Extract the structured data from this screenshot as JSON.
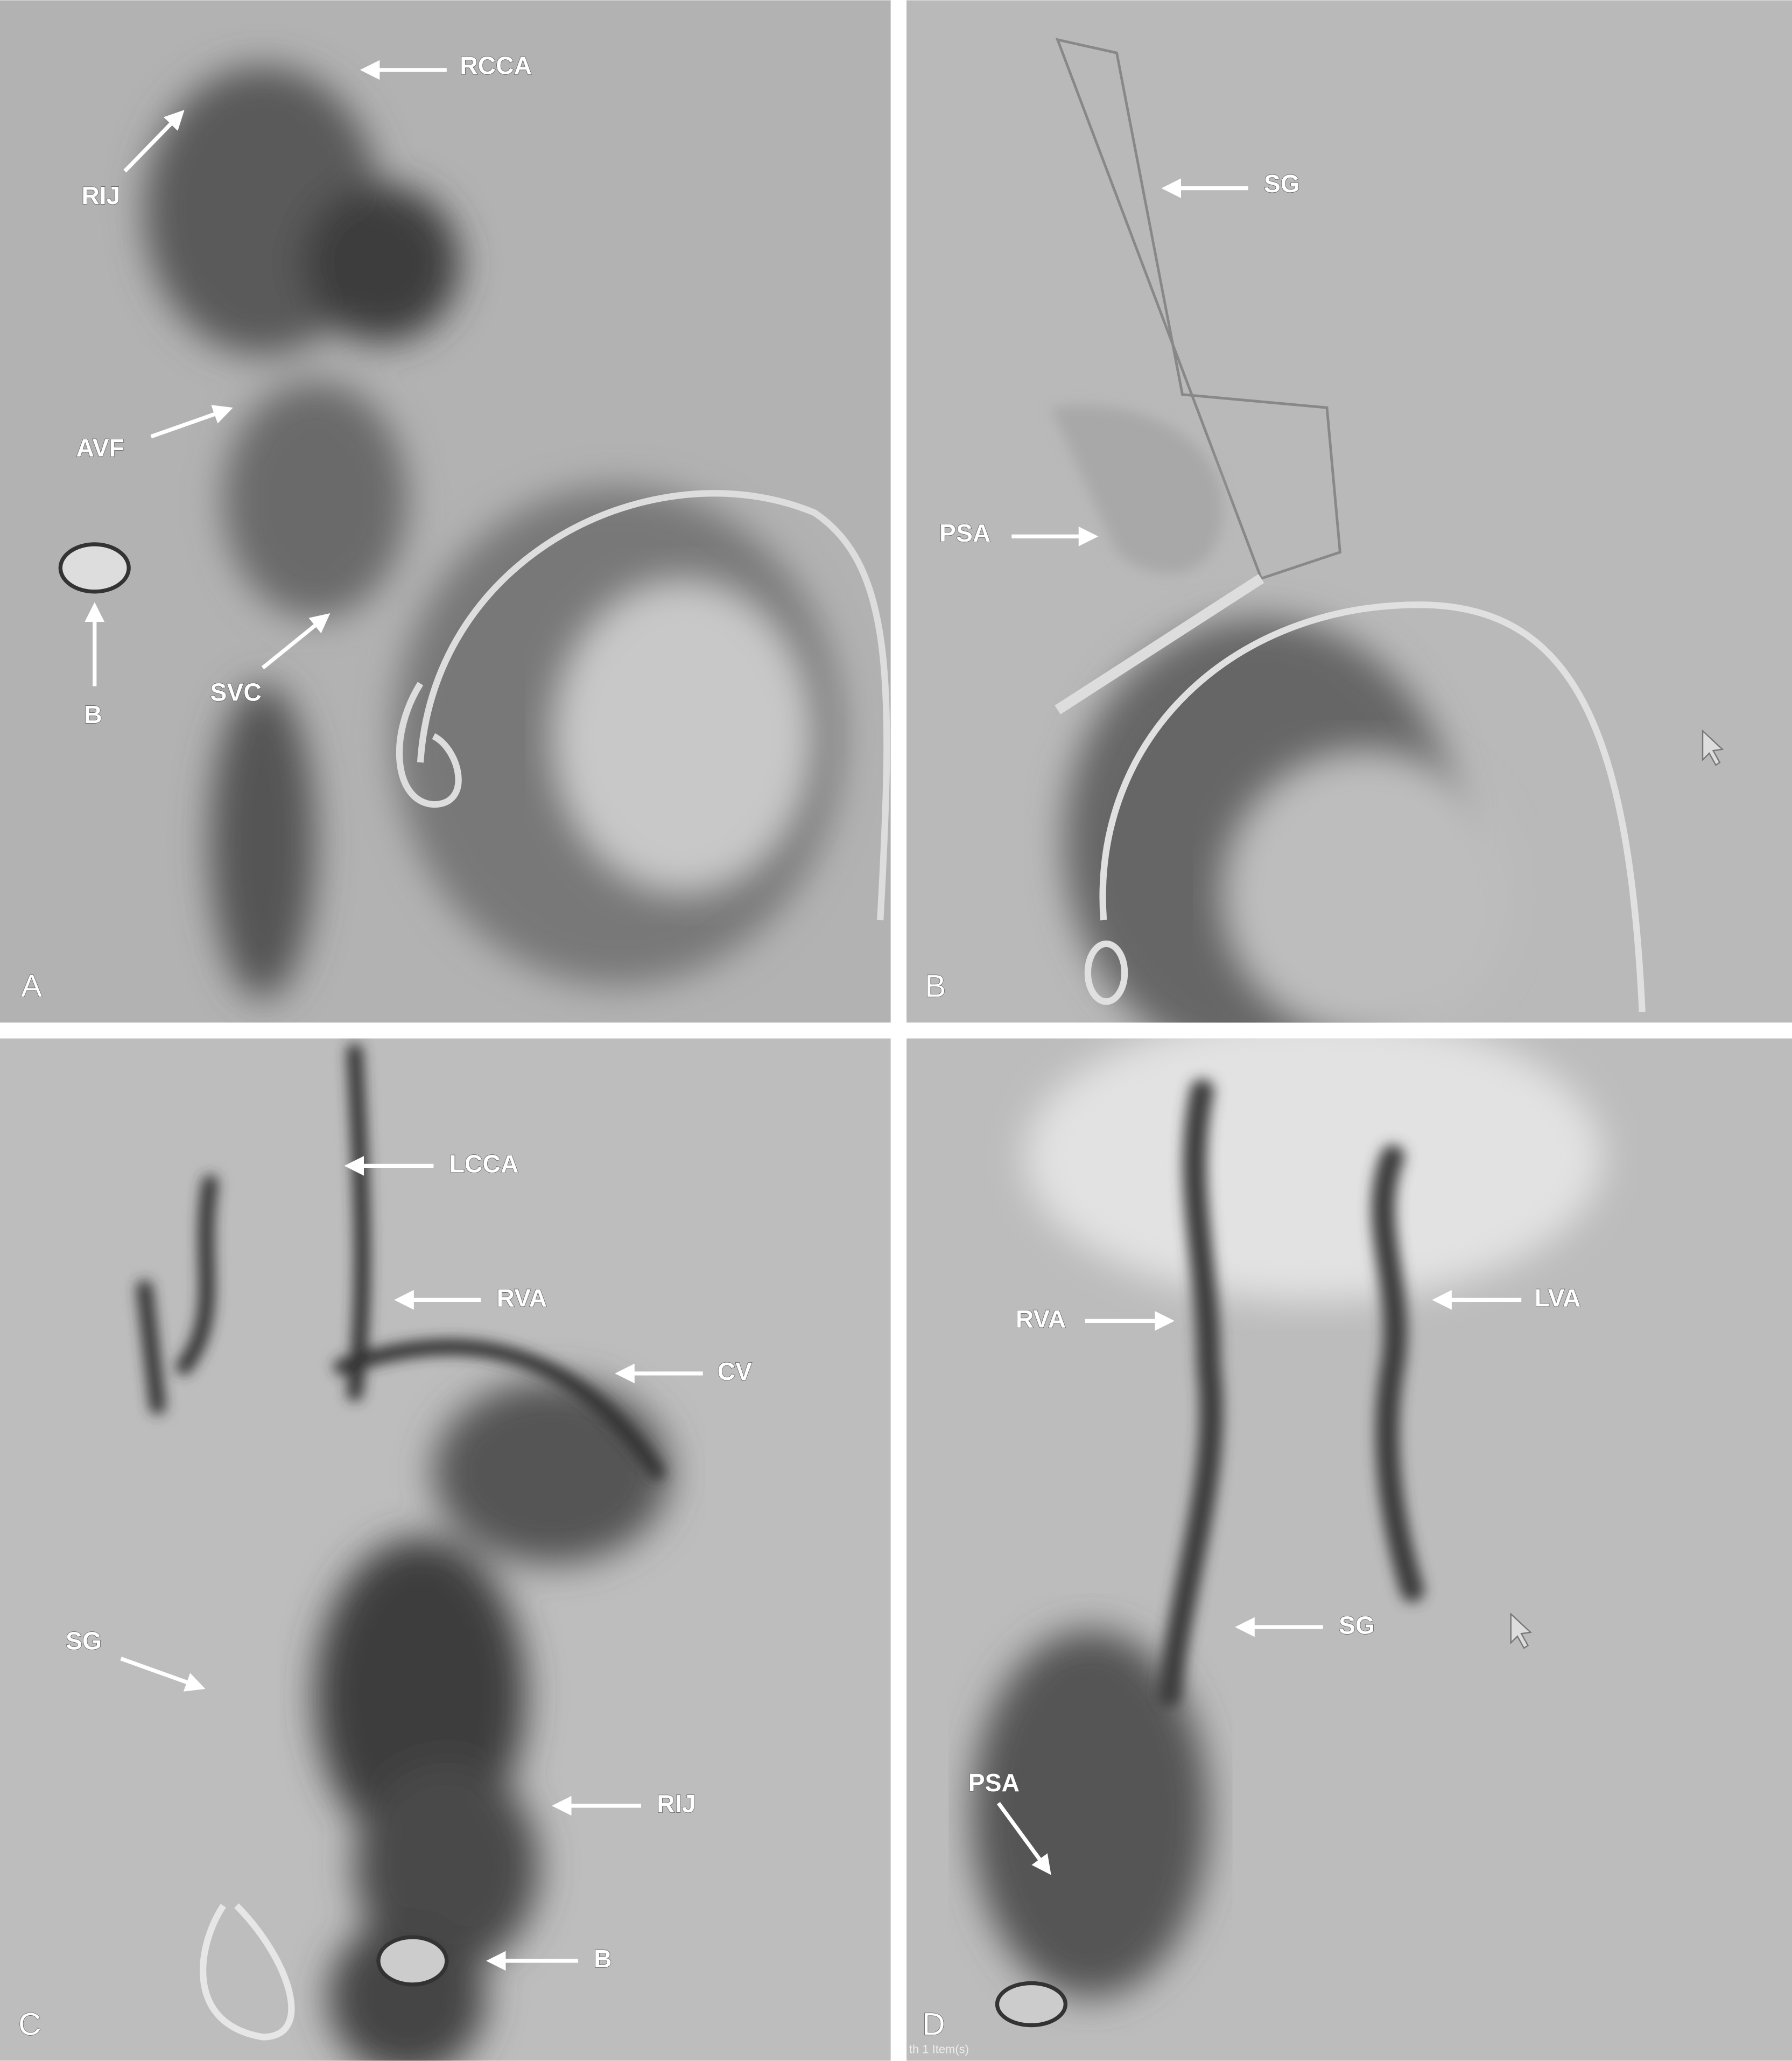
{
  "panels": [
    {
      "letter": "A",
      "labels": [
        "RCCA",
        "RIJ",
        "AVF",
        "B",
        "SVC"
      ]
    },
    {
      "letter": "B",
      "labels": [
        "SG",
        "PSA"
      ]
    },
    {
      "letter": "C",
      "labels": [
        "LCCA",
        "RVA",
        "CV",
        "SG",
        "RIJ",
        "B"
      ]
    },
    {
      "letter": "D",
      "labels": [
        "LVA",
        "RVA",
        "SG",
        "PSA"
      ],
      "overlay_text": "th 1 Item(s)"
    }
  ]
}
